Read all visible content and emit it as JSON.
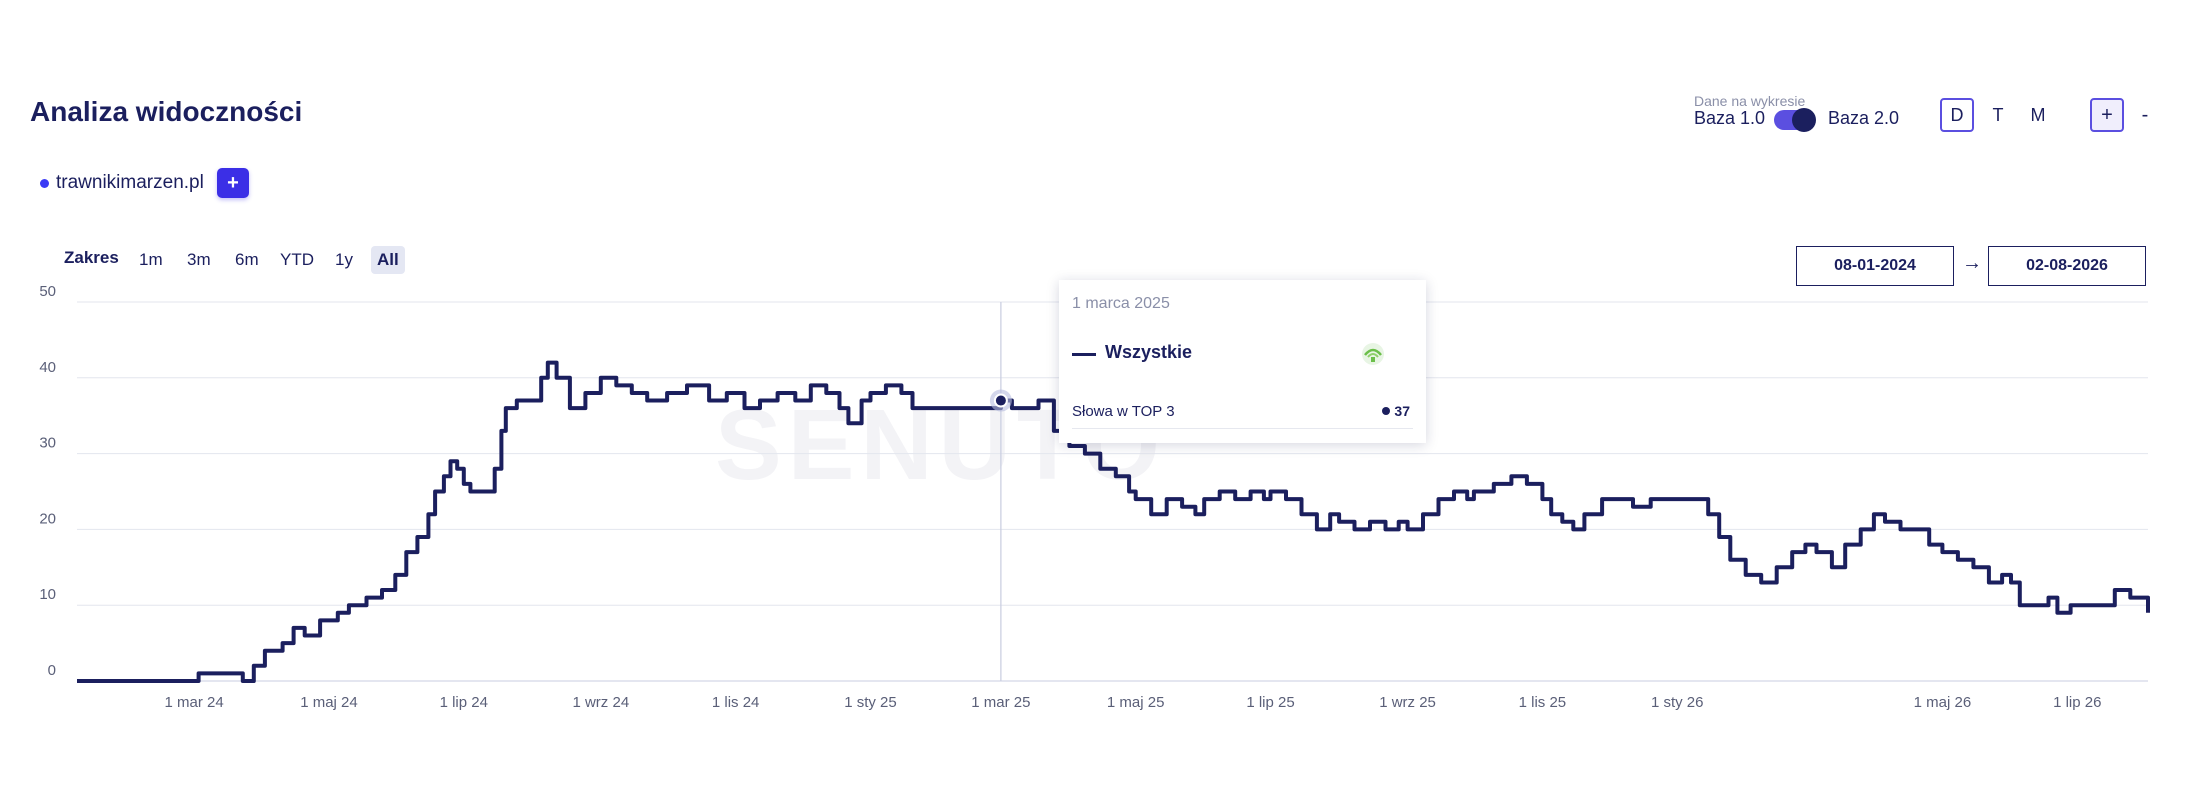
{
  "header": {
    "title": "Analiza widoczności",
    "baza_caption": "Dane na wykresie",
    "baza_left": "Baza 1.0",
    "baza_right": "Baza 2.0",
    "periods": [
      "D",
      "T",
      "M"
    ],
    "active_period": "D",
    "zoom_in": "+",
    "zoom_out": "-"
  },
  "domains": [
    {
      "label": "trawnikimarzen.pl",
      "color": "#3b3bf5"
    }
  ],
  "add_button": "+",
  "range": {
    "label": "Zakres",
    "options": [
      "1m",
      "3m",
      "6m",
      "YTD",
      "1y",
      "All"
    ],
    "active": "All",
    "start_date": "08-01-2024",
    "end_date": "02-08-2026",
    "arrow": "→"
  },
  "watermark": "SENUTO",
  "tooltip": {
    "date": "1 marca 2025",
    "series": "Wszystkie",
    "metric": "Słowa w TOP 3",
    "value": "37"
  },
  "chart_data": {
    "type": "line",
    "title": "",
    "xlabel": "",
    "ylabel": "",
    "ylim": [
      0,
      50
    ],
    "y_ticks": [
      0,
      10,
      20,
      30,
      40,
      50
    ],
    "x_range": [
      "2024-01-08",
      "2026-08-02"
    ],
    "x_ticks": [
      {
        "date": "2024-03-01",
        "label": "1 mar 24"
      },
      {
        "date": "2024-05-01",
        "label": "1 maj 24"
      },
      {
        "date": "2024-07-01",
        "label": "1 lip 24"
      },
      {
        "date": "2024-09-01",
        "label": "1 wrz 24"
      },
      {
        "date": "2024-11-01",
        "label": "1 lis 24"
      },
      {
        "date": "2025-01-01",
        "label": "1 sty 25"
      },
      {
        "date": "2025-03-01",
        "label": "1 mar 25"
      },
      {
        "date": "2025-05-01",
        "label": "1 maj 25"
      },
      {
        "date": "2025-07-01",
        "label": "1 lip 25"
      },
      {
        "date": "2025-09-01",
        "label": "1 wrz 25"
      },
      {
        "date": "2025-11-01",
        "label": "1 lis 25"
      },
      {
        "date": "2026-01-01",
        "label": "1 sty 26"
      },
      {
        "date": "2026-05-01",
        "label": "1 maj 26"
      },
      {
        "date": "2026-07-01",
        "label": "1 lip 26"
      }
    ],
    "grid": true,
    "line_color": "#1b1f5e",
    "highlight": {
      "date": "2025-03-01",
      "value": 37
    },
    "series": [
      {
        "name": "Wszystkie",
        "points": [
          [
            "2024-01-08",
            0
          ],
          [
            "2024-03-01",
            0
          ],
          [
            "2024-03-03",
            1
          ],
          [
            "2024-03-20",
            1
          ],
          [
            "2024-03-23",
            0
          ],
          [
            "2024-03-28",
            2
          ],
          [
            "2024-04-02",
            4
          ],
          [
            "2024-04-10",
            5
          ],
          [
            "2024-04-15",
            7
          ],
          [
            "2024-04-20",
            6
          ],
          [
            "2024-04-27",
            8
          ],
          [
            "2024-05-05",
            9
          ],
          [
            "2024-05-10",
            10
          ],
          [
            "2024-05-18",
            11
          ],
          [
            "2024-05-25",
            12
          ],
          [
            "2024-05-31",
            14
          ],
          [
            "2024-06-05",
            17
          ],
          [
            "2024-06-10",
            19
          ],
          [
            "2024-06-15",
            22
          ],
          [
            "2024-06-18",
            25
          ],
          [
            "2024-06-22",
            27
          ],
          [
            "2024-06-25",
            29
          ],
          [
            "2024-06-28",
            28
          ],
          [
            "2024-07-01",
            26
          ],
          [
            "2024-07-04",
            25
          ],
          [
            "2024-07-10",
            25
          ],
          [
            "2024-07-15",
            28
          ],
          [
            "2024-07-18",
            33
          ],
          [
            "2024-07-20",
            36
          ],
          [
            "2024-07-25",
            37
          ],
          [
            "2024-08-01",
            37
          ],
          [
            "2024-08-05",
            40
          ],
          [
            "2024-08-08",
            42
          ],
          [
            "2024-08-12",
            40
          ],
          [
            "2024-08-18",
            36
          ],
          [
            "2024-08-25",
            38
          ],
          [
            "2024-09-01",
            40
          ],
          [
            "2024-09-08",
            39
          ],
          [
            "2024-09-15",
            38
          ],
          [
            "2024-09-22",
            37
          ],
          [
            "2024-10-01",
            38
          ],
          [
            "2024-10-10",
            39
          ],
          [
            "2024-10-20",
            37
          ],
          [
            "2024-10-28",
            38
          ],
          [
            "2024-11-05",
            36
          ],
          [
            "2024-11-12",
            37
          ],
          [
            "2024-11-20",
            38
          ],
          [
            "2024-11-28",
            37
          ],
          [
            "2024-12-05",
            39
          ],
          [
            "2024-12-12",
            38
          ],
          [
            "2024-12-18",
            36
          ],
          [
            "2024-12-22",
            34
          ],
          [
            "2024-12-28",
            37
          ],
          [
            "2025-01-01",
            38
          ],
          [
            "2025-01-08",
            39
          ],
          [
            "2025-01-15",
            38
          ],
          [
            "2025-01-20",
            36
          ],
          [
            "2025-02-01",
            36
          ],
          [
            "2025-02-15",
            36
          ],
          [
            "2025-02-25",
            36
          ],
          [
            "2025-03-01",
            37
          ],
          [
            "2025-03-06",
            36
          ],
          [
            "2025-03-12",
            36
          ],
          [
            "2025-03-18",
            37
          ],
          [
            "2025-03-25",
            33
          ],
          [
            "2025-04-01",
            31
          ],
          [
            "2025-04-08",
            30
          ],
          [
            "2025-04-15",
            28
          ],
          [
            "2025-04-22",
            27
          ],
          [
            "2025-04-28",
            25
          ],
          [
            "2025-05-01",
            24
          ],
          [
            "2025-05-08",
            22
          ],
          [
            "2025-05-15",
            24
          ],
          [
            "2025-05-22",
            23
          ],
          [
            "2025-05-28",
            22
          ],
          [
            "2025-06-01",
            24
          ],
          [
            "2025-06-08",
            25
          ],
          [
            "2025-06-15",
            24
          ],
          [
            "2025-06-22",
            25
          ],
          [
            "2025-06-28",
            24
          ],
          [
            "2025-07-01",
            25
          ],
          [
            "2025-07-08",
            24
          ],
          [
            "2025-07-15",
            22
          ],
          [
            "2025-07-22",
            20
          ],
          [
            "2025-07-28",
            22
          ],
          [
            "2025-08-01",
            21
          ],
          [
            "2025-08-08",
            20
          ],
          [
            "2025-08-15",
            21
          ],
          [
            "2025-08-22",
            20
          ],
          [
            "2025-08-28",
            21
          ],
          [
            "2025-09-01",
            20
          ],
          [
            "2025-09-08",
            22
          ],
          [
            "2025-09-15",
            24
          ],
          [
            "2025-09-22",
            25
          ],
          [
            "2025-09-28",
            24
          ],
          [
            "2025-10-01",
            25
          ],
          [
            "2025-10-10",
            26
          ],
          [
            "2025-10-18",
            27
          ],
          [
            "2025-10-25",
            26
          ],
          [
            "2025-11-01",
            24
          ],
          [
            "2025-11-05",
            22
          ],
          [
            "2025-11-10",
            21
          ],
          [
            "2025-11-15",
            20
          ],
          [
            "2025-11-20",
            22
          ],
          [
            "2025-11-28",
            24
          ],
          [
            "2025-12-05",
            24
          ],
          [
            "2025-12-12",
            23
          ],
          [
            "2025-12-20",
            24
          ],
          [
            "2025-12-28",
            24
          ],
          [
            "2026-01-01",
            24
          ],
          [
            "2026-01-08",
            24
          ],
          [
            "2026-01-15",
            22
          ],
          [
            "2026-01-20",
            19
          ],
          [
            "2026-01-25",
            16
          ],
          [
            "2026-02-01",
            14
          ],
          [
            "2026-02-08",
            13
          ],
          [
            "2026-02-15",
            15
          ],
          [
            "2026-02-22",
            17
          ],
          [
            "2026-02-28",
            18
          ],
          [
            "2026-03-05",
            17
          ],
          [
            "2026-03-12",
            15
          ],
          [
            "2026-03-18",
            18
          ],
          [
            "2026-03-25",
            20
          ],
          [
            "2026-03-31",
            22
          ],
          [
            "2026-04-05",
            21
          ],
          [
            "2026-04-12",
            20
          ],
          [
            "2026-04-18",
            20
          ],
          [
            "2026-04-25",
            18
          ],
          [
            "2026-05-01",
            17
          ],
          [
            "2026-05-08",
            16
          ],
          [
            "2026-05-15",
            15
          ],
          [
            "2026-05-22",
            13
          ],
          [
            "2026-05-28",
            14
          ],
          [
            "2026-06-01",
            13
          ],
          [
            "2026-06-05",
            10
          ],
          [
            "2026-06-12",
            10
          ],
          [
            "2026-06-18",
            11
          ],
          [
            "2026-06-22",
            9
          ],
          [
            "2026-06-28",
            10
          ],
          [
            "2026-07-05",
            10
          ],
          [
            "2026-07-12",
            10
          ],
          [
            "2026-07-18",
            12
          ],
          [
            "2026-07-25",
            11
          ],
          [
            "2026-08-02",
            9
          ]
        ]
      }
    ]
  }
}
